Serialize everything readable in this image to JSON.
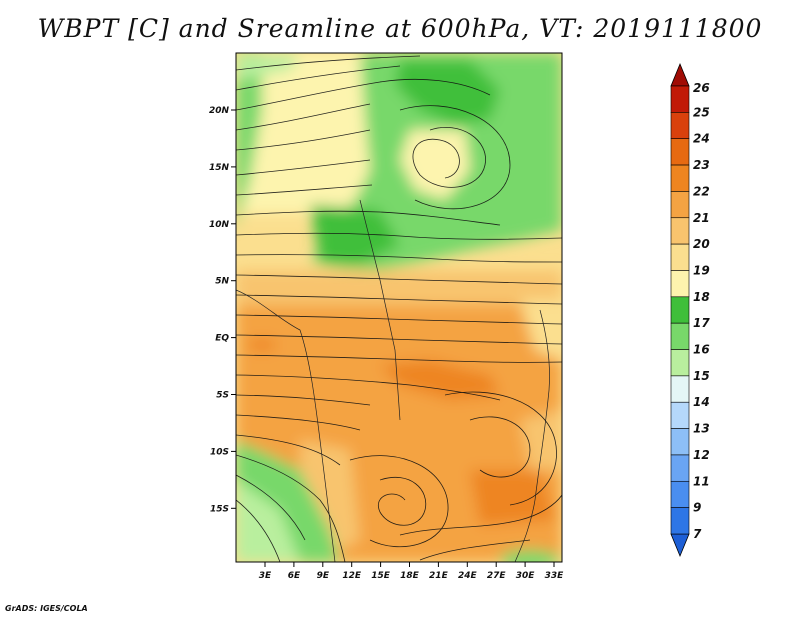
{
  "title": "WBPT [C] and Sreamline at 600hPa, VT: 2019111800",
  "credit": "GrADS: IGES/COLA",
  "map": {
    "lat_labels": [
      "20N",
      "15N",
      "10N",
      "5N",
      "EQ",
      "5S",
      "10S",
      "15S"
    ],
    "lon_labels": [
      "3E",
      "6E",
      "9E",
      "12E",
      "15E",
      "18E",
      "21E",
      "24E",
      "27E",
      "30E",
      "33E"
    ],
    "field": "WBPT",
    "level": "600hPa",
    "overlay": "streamlines"
  },
  "colorbar": {
    "labels": [
      "7",
      "9",
      "11",
      "12",
      "13",
      "14",
      "15",
      "16",
      "17",
      "18",
      "19",
      "20",
      "21",
      "22",
      "23",
      "24",
      "25",
      "26"
    ],
    "colors": [
      "#1d5fd6",
      "#2e76e6",
      "#4a8ef0",
      "#6aa5f4",
      "#8dbff7",
      "#b5d8fb",
      "#e4f6f6",
      "#b9ef9e",
      "#78d86a",
      "#3fbf3a",
      "#fdf4ae",
      "#fbdf8f",
      "#f8c46e",
      "#f4a343",
      "#ee8520",
      "#e76a12",
      "#d9410c",
      "#c11a07",
      "#a00c05"
    ],
    "extends": "both"
  }
}
